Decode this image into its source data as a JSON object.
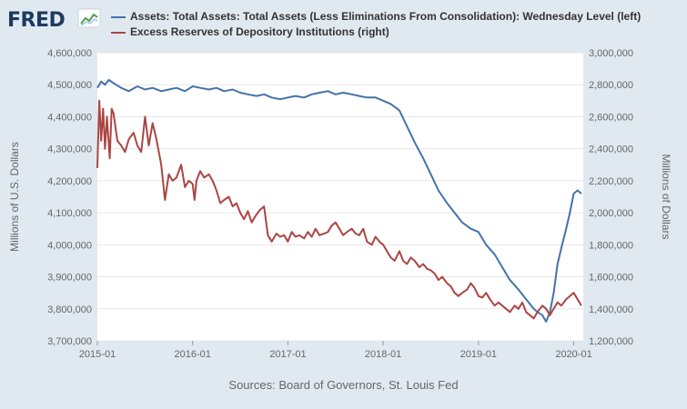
{
  "logo": {
    "text": "FRED",
    "icon_name": "fred-chart-icon"
  },
  "colors": {
    "background": "#e1e9f0",
    "plot_background": "#ffffff",
    "grid": "#e6e6e6",
    "series_assets": "#4572a7",
    "series_reserves": "#aa4643",
    "axis_text": "#666666",
    "logo": "#1e3a5f"
  },
  "source": "Sources: Board of Governors, St. Louis Fed",
  "chart_data": {
    "type": "line",
    "title": "",
    "xlabel": "",
    "ylabel_left": "Millions of U.S. Dollars",
    "ylabel_right": "Millions of Dollars",
    "ylim_left": [
      3700000,
      4600000
    ],
    "ylim_right": [
      1200000,
      3000000
    ],
    "x_range": [
      2015.0,
      2020.1
    ],
    "grid": true,
    "legend_position": "top",
    "x_ticks": [
      {
        "label": "2015-01",
        "value": 2015.0
      },
      {
        "label": "2016-01",
        "value": 2016.0
      },
      {
        "label": "2017-01",
        "value": 2017.0
      },
      {
        "label": "2018-01",
        "value": 2018.0
      },
      {
        "label": "2019-01",
        "value": 2019.0
      },
      {
        "label": "2020-01",
        "value": 2020.0
      }
    ],
    "y_ticks_left": [
      {
        "label": "3,700,000",
        "value": 3700000
      },
      {
        "label": "3,800,000",
        "value": 3800000
      },
      {
        "label": "3,900,000",
        "value": 3900000
      },
      {
        "label": "4,000,000",
        "value": 4000000
      },
      {
        "label": "4,100,000",
        "value": 4100000
      },
      {
        "label": "4,200,000",
        "value": 4200000
      },
      {
        "label": "4,300,000",
        "value": 4300000
      },
      {
        "label": "4,400,000",
        "value": 4400000
      },
      {
        "label": "4,500,000",
        "value": 4500000
      },
      {
        "label": "4,600,000",
        "value": 4600000
      }
    ],
    "y_ticks_right": [
      {
        "label": "1,200,000",
        "value": 1200000
      },
      {
        "label": "1,400,000",
        "value": 1400000
      },
      {
        "label": "1,600,000",
        "value": 1600000
      },
      {
        "label": "1,800,000",
        "value": 1800000
      },
      {
        "label": "2,000,000",
        "value": 2000000
      },
      {
        "label": "2,200,000",
        "value": 2200000
      },
      {
        "label": "2,400,000",
        "value": 2400000
      },
      {
        "label": "2,600,000",
        "value": 2600000
      },
      {
        "label": "2,800,000",
        "value": 2800000
      },
      {
        "label": "3,000,000",
        "value": 3000000
      }
    ],
    "series": [
      {
        "name": "Assets: Total Assets: Total Assets (Less Eliminations From Consolidation): Wednesday Level (left)",
        "axis": "left",
        "color": "#4572a7",
        "x": [
          2015.0,
          2015.04,
          2015.08,
          2015.12,
          2015.17,
          2015.25,
          2015.33,
          2015.42,
          2015.5,
          2015.58,
          2015.67,
          2015.75,
          2015.83,
          2015.92,
          2016.0,
          2016.08,
          2016.17,
          2016.25,
          2016.33,
          2016.42,
          2016.5,
          2016.58,
          2016.67,
          2016.75,
          2016.83,
          2016.92,
          2017.0,
          2017.08,
          2017.17,
          2017.25,
          2017.33,
          2017.42,
          2017.5,
          2017.58,
          2017.67,
          2017.75,
          2017.83,
          2017.92,
          2018.0,
          2018.08,
          2018.17,
          2018.25,
          2018.33,
          2018.42,
          2018.5,
          2018.58,
          2018.67,
          2018.75,
          2018.83,
          2018.92,
          2019.0,
          2019.08,
          2019.17,
          2019.25,
          2019.33,
          2019.42,
          2019.5,
          2019.58,
          2019.62,
          2019.67,
          2019.71,
          2019.75,
          2019.79,
          2019.83,
          2019.87,
          2019.92,
          2019.96,
          2020.0,
          2020.04,
          2020.08
        ],
        "y": [
          4490000,
          4510000,
          4500000,
          4515000,
          4505000,
          4490000,
          4480000,
          4495000,
          4485000,
          4490000,
          4480000,
          4485000,
          4490000,
          4480000,
          4495000,
          4490000,
          4485000,
          4490000,
          4480000,
          4485000,
          4475000,
          4470000,
          4465000,
          4470000,
          4460000,
          4455000,
          4460000,
          4465000,
          4460000,
          4470000,
          4475000,
          4480000,
          4470000,
          4475000,
          4470000,
          4465000,
          4460000,
          4460000,
          4450000,
          4440000,
          4420000,
          4370000,
          4320000,
          4270000,
          4220000,
          4170000,
          4130000,
          4100000,
          4070000,
          4050000,
          4040000,
          4000000,
          3970000,
          3930000,
          3890000,
          3860000,
          3830000,
          3800000,
          3790000,
          3780000,
          3760000,
          3790000,
          3850000,
          3940000,
          3990000,
          4050000,
          4100000,
          4160000,
          4170000,
          4160000
        ]
      },
      {
        "name": "Excess Reserves of Depository Institutions (right)",
        "axis": "right",
        "color": "#aa4643",
        "x": [
          2015.0,
          2015.02,
          2015.04,
          2015.06,
          2015.08,
          2015.1,
          2015.13,
          2015.15,
          2015.17,
          2015.21,
          2015.25,
          2015.29,
          2015.33,
          2015.38,
          2015.42,
          2015.46,
          2015.5,
          2015.54,
          2015.58,
          2015.62,
          2015.67,
          2015.71,
          2015.75,
          2015.79,
          2015.83,
          2015.88,
          2015.92,
          2015.96,
          2016.0,
          2016.02,
          2016.04,
          2016.08,
          2016.12,
          2016.17,
          2016.21,
          2016.25,
          2016.29,
          2016.33,
          2016.38,
          2016.42,
          2016.46,
          2016.5,
          2016.54,
          2016.58,
          2016.62,
          2016.67,
          2016.71,
          2016.75,
          2016.79,
          2016.83,
          2016.88,
          2016.92,
          2016.96,
          2017.0,
          2017.04,
          2017.08,
          2017.12,
          2017.17,
          2017.21,
          2017.25,
          2017.29,
          2017.33,
          2017.38,
          2017.42,
          2017.46,
          2017.5,
          2017.54,
          2017.58,
          2017.62,
          2017.67,
          2017.71,
          2017.75,
          2017.79,
          2017.83,
          2017.88,
          2017.92,
          2017.96,
          2018.0,
          2018.04,
          2018.08,
          2018.12,
          2018.17,
          2018.21,
          2018.25,
          2018.29,
          2018.33,
          2018.38,
          2018.42,
          2018.46,
          2018.5,
          2018.54,
          2018.58,
          2018.62,
          2018.67,
          2018.71,
          2018.75,
          2018.79,
          2018.83,
          2018.88,
          2018.92,
          2018.96,
          2019.0,
          2019.04,
          2019.08,
          2019.12,
          2019.17,
          2019.21,
          2019.25,
          2019.29,
          2019.33,
          2019.38,
          2019.42,
          2019.46,
          2019.5,
          2019.54,
          2019.58,
          2019.62,
          2019.67,
          2019.71,
          2019.75,
          2019.79,
          2019.83,
          2019.87,
          2019.92,
          2019.96,
          2020.0,
          2020.04,
          2020.08
        ],
        "y": [
          2280000,
          2700000,
          2450000,
          2650000,
          2400000,
          2600000,
          2340000,
          2650000,
          2620000,
          2450000,
          2420000,
          2380000,
          2460000,
          2500000,
          2420000,
          2380000,
          2600000,
          2420000,
          2560000,
          2460000,
          2300000,
          2080000,
          2240000,
          2200000,
          2220000,
          2300000,
          2160000,
          2200000,
          2180000,
          2080000,
          2200000,
          2260000,
          2220000,
          2240000,
          2200000,
          2140000,
          2060000,
          2080000,
          2100000,
          2040000,
          2060000,
          2000000,
          1960000,
          2010000,
          1940000,
          1990000,
          2020000,
          2040000,
          1860000,
          1820000,
          1870000,
          1850000,
          1860000,
          1820000,
          1880000,
          1850000,
          1860000,
          1840000,
          1880000,
          1850000,
          1900000,
          1860000,
          1870000,
          1880000,
          1920000,
          1940000,
          1900000,
          1860000,
          1880000,
          1900000,
          1870000,
          1860000,
          1900000,
          1820000,
          1800000,
          1850000,
          1820000,
          1800000,
          1760000,
          1720000,
          1700000,
          1760000,
          1700000,
          1680000,
          1720000,
          1700000,
          1660000,
          1680000,
          1650000,
          1640000,
          1620000,
          1580000,
          1600000,
          1560000,
          1540000,
          1500000,
          1480000,
          1500000,
          1520000,
          1560000,
          1530000,
          1480000,
          1470000,
          1500000,
          1460000,
          1420000,
          1440000,
          1420000,
          1400000,
          1380000,
          1420000,
          1400000,
          1440000,
          1380000,
          1360000,
          1340000,
          1380000,
          1420000,
          1400000,
          1360000,
          1400000,
          1440000,
          1420000,
          1460000,
          1480000,
          1500000,
          1460000,
          1420000
        ]
      }
    ]
  }
}
